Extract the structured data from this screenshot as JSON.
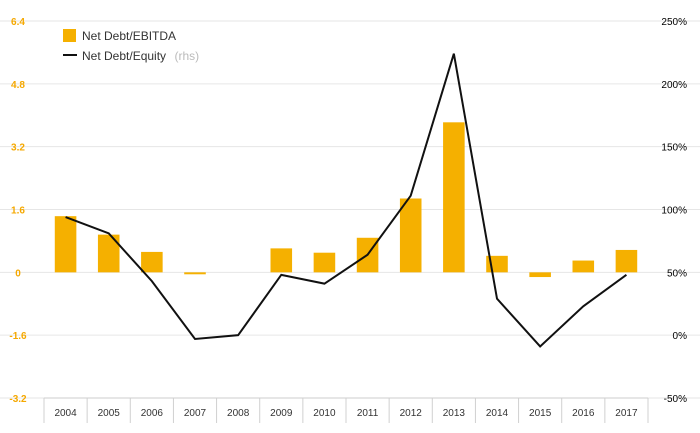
{
  "chart_data": {
    "type": "bar",
    "categories": [
      "2004",
      "2005",
      "2006",
      "2007",
      "2008",
      "2009",
      "2010",
      "2011",
      "2012",
      "2013",
      "2014",
      "2015",
      "2016",
      "2017"
    ],
    "series": [
      {
        "name": "Net Debt/EBITDA",
        "type": "bar",
        "axis": "left",
        "color": "#f5b000",
        "values": [
          1.43,
          0.96,
          0.52,
          -0.05,
          0.0,
          0.61,
          0.5,
          0.88,
          1.88,
          3.82,
          0.42,
          -0.12,
          0.3,
          0.57
        ]
      },
      {
        "name": "Net Debt/Equity",
        "name_suffix": "(rhs)",
        "type": "line",
        "axis": "right",
        "color": "#111111",
        "values": [
          94,
          81,
          43,
          -3,
          0,
          48,
          41,
          64,
          111,
          224,
          29,
          -9,
          23,
          48
        ]
      }
    ],
    "y_left": {
      "range": [
        -3.2,
        6.4
      ],
      "ticks": [
        "-3.2",
        "-1.6",
        "0",
        "1.6",
        "3.2",
        "4.8",
        "6.4"
      ],
      "tick_values": [
        -3.2,
        -1.6,
        0,
        1.6,
        3.2,
        4.8,
        6.4
      ]
    },
    "y_right": {
      "range": [
        -50,
        250
      ],
      "ticks": [
        "-50%",
        "0%",
        "50%",
        "100%",
        "150%",
        "200%",
        "250%"
      ],
      "tick_values": [
        -50,
        0,
        50,
        100,
        150,
        200,
        250
      ]
    },
    "grid": true,
    "legend": "top-left",
    "title": "",
    "xlabel": "",
    "ylabel": ""
  }
}
